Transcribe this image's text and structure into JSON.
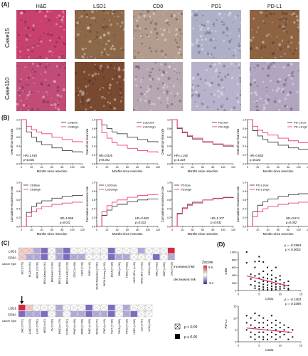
{
  "panels": {
    "A": "(A)",
    "B": "(B)",
    "C": "(C)",
    "D": "(D)"
  },
  "histology": {
    "columns": [
      "H&E",
      "LSD1",
      "CD8",
      "PD1",
      "PD-L1"
    ],
    "rows": [
      "Case15",
      "Case110"
    ],
    "tile_colors": [
      [
        "#c8416e",
        "#8c6848",
        "#b39c8e",
        "#aeb0c8",
        "#8d6342"
      ],
      [
        "#c14c78",
        "#7a4a30",
        "#b7a7b3",
        "#b9b2cc",
        "#b1a5bf"
      ]
    ]
  },
  "km": {
    "os_ylabel": "Overall survival rate",
    "rec_ylabel": "Cumulative recurrence rate",
    "xlabel": "Months since resection",
    "x_ticks": [
      "0",
      "20",
      "40",
      "60",
      "80",
      "100",
      "120"
    ],
    "os_y_ticks": [
      "0.0",
      "0.2",
      "0.4",
      "0.6",
      "0.8",
      "1.0"
    ],
    "rec_y_ticks": [
      "0.0",
      "0.2",
      "0.4",
      "0.6",
      "0.8",
      "1.0"
    ],
    "low_color": "#444444",
    "high_color": "#ee3f7e"
  },
  "chart_data": [
    {
      "type": "line",
      "panel": "B-os-1",
      "legend": [
        "CD8low",
        "CD8high"
      ],
      "hr": "HR=1.919",
      "p": "p<0.001",
      "x": [
        0,
        10,
        20,
        30,
        40,
        60,
        80,
        100,
        120
      ],
      "series": [
        {
          "name": "CD8low",
          "values": [
            1,
            0.72,
            0.6,
            0.5,
            0.43,
            0.36,
            0.3,
            0.27,
            0.25
          ]
        },
        {
          "name": "CD8high",
          "values": [
            1,
            0.85,
            0.77,
            0.72,
            0.68,
            0.6,
            0.55,
            0.5,
            0.48
          ]
        }
      ]
    },
    {
      "type": "line",
      "panel": "B-os-2",
      "legend": [
        "LSD1low",
        "LSD1high"
      ],
      "hr": "HR=0.525",
      "p": "p<0.001",
      "x": [
        0,
        10,
        20,
        30,
        40,
        60,
        80,
        100,
        120
      ],
      "series": [
        {
          "name": "LSD1low",
          "values": [
            1,
            0.88,
            0.8,
            0.72,
            0.68,
            0.6,
            0.55,
            0.5,
            0.48
          ]
        },
        {
          "name": "LSD1high",
          "values": [
            1,
            0.7,
            0.58,
            0.48,
            0.42,
            0.35,
            0.3,
            0.27,
            0.25
          ]
        }
      ]
    },
    {
      "type": "line",
      "panel": "B-os-3",
      "legend": [
        "PD1low",
        "PD1high"
      ],
      "hr": "HR=1.192",
      "p": "p=0.319",
      "x": [
        0,
        10,
        20,
        30,
        40,
        60,
        80,
        100,
        120
      ],
      "series": [
        {
          "name": "PD1low",
          "values": [
            1,
            0.8,
            0.7,
            0.62,
            0.56,
            0.49,
            0.44,
            0.4,
            0.38
          ]
        },
        {
          "name": "PD1high",
          "values": [
            1,
            0.82,
            0.72,
            0.64,
            0.58,
            0.5,
            0.45,
            0.42,
            0.4
          ]
        }
      ]
    },
    {
      "type": "line",
      "panel": "B-os-4",
      "legend": [
        "PD-L1low",
        "PD-L1high"
      ],
      "hr": "HR=0.645",
      "p": "p=0.023",
      "x": [
        0,
        10,
        20,
        30,
        40,
        60,
        80,
        100,
        120
      ],
      "series": [
        {
          "name": "PD-L1low",
          "values": [
            1,
            0.75,
            0.63,
            0.55,
            0.49,
            0.42,
            0.36,
            0.33,
            0.3
          ]
        },
        {
          "name": "PD-L1high",
          "values": [
            1,
            0.85,
            0.76,
            0.7,
            0.65,
            0.58,
            0.52,
            0.48,
            0.46
          ]
        }
      ]
    },
    {
      "type": "line",
      "panel": "B-rec-1",
      "legend": [
        "CD8low",
        "CD8high"
      ],
      "hr": "HR=1.559",
      "p": "p=0.011",
      "x": [
        0,
        10,
        20,
        30,
        40,
        60,
        80,
        100,
        120
      ],
      "series": [
        {
          "name": "CD8low",
          "values": [
            0,
            0.32,
            0.45,
            0.53,
            0.58,
            0.64,
            0.68,
            0.7,
            0.72
          ]
        },
        {
          "name": "CD8high",
          "values": [
            0,
            0.22,
            0.33,
            0.4,
            0.45,
            0.5,
            0.53,
            0.55,
            0.56
          ]
        }
      ]
    },
    {
      "type": "line",
      "panel": "B-rec-2",
      "legend": [
        "LSD1low",
        "LSD1high"
      ],
      "hr": "HR=0.683",
      "p": "p=0.022",
      "x": [
        0,
        10,
        20,
        30,
        40,
        60,
        80,
        100,
        120
      ],
      "series": [
        {
          "name": "LSD1low",
          "values": [
            0,
            0.25,
            0.37,
            0.45,
            0.5,
            0.56,
            0.6,
            0.62,
            0.63
          ]
        },
        {
          "name": "LSD1high",
          "values": [
            0,
            0.33,
            0.47,
            0.55,
            0.6,
            0.66,
            0.7,
            0.72,
            0.73
          ]
        }
      ]
    },
    {
      "type": "line",
      "panel": "B-rec-3",
      "legend": [
        "PD1low",
        "PD1high"
      ],
      "hr": "HR=1.107",
      "p": "p=0.542",
      "x": [
        0,
        10,
        20,
        30,
        40,
        60,
        80,
        100,
        120
      ],
      "series": [
        {
          "name": "PD1low",
          "values": [
            0,
            0.3,
            0.42,
            0.5,
            0.55,
            0.6,
            0.63,
            0.65,
            0.66
          ]
        },
        {
          "name": "PD1high",
          "values": [
            0,
            0.28,
            0.4,
            0.48,
            0.53,
            0.6,
            0.64,
            0.66,
            0.67
          ]
        }
      ]
    },
    {
      "type": "line",
      "panel": "B-rec-4",
      "legend": [
        "PD-L1low",
        "PD-L1high"
      ],
      "hr": "HR=0.574",
      "p": "p=0.002",
      "x": [
        0,
        10,
        20,
        30,
        40,
        60,
        80,
        100,
        120
      ],
      "series": [
        {
          "name": "PD-L1low",
          "values": [
            0,
            0.33,
            0.48,
            0.56,
            0.62,
            0.68,
            0.72,
            0.74,
            0.75
          ]
        },
        {
          "name": "PD-L1high",
          "values": [
            0,
            0.22,
            0.33,
            0.4,
            0.45,
            0.5,
            0.53,
            0.55,
            0.56
          ]
        }
      ]
    },
    {
      "type": "heatmap",
      "panel": "C-top",
      "rows": [
        "LSD1",
        "CD8A"
      ],
      "columns": [
        "ACC (n=79)",
        "BLCA (n=404)",
        "BRCA (n=1100)",
        "BRCA-Basal (n=191)",
        "BRCA-Her2 (n=82)",
        "BRCA-LumA (n=568)",
        "BRCA-LumB (n=219)",
        "CESC (n=306)",
        "CHOL (n=36)",
        "DLBC (n=48)",
        "SKCM-Metastasis (n=367)",
        "SKCM-Primary (n=103)",
        "ESCA (n=185)",
        "GBM (n=153)",
        "HNSC (n=522)",
        "HNSC-HPV+ (n=98)",
        "HNSC-HPV- (n=422)",
        "KICH (n=66)",
        "KIRC (n=533)",
        "KIRP (n=290)",
        "LGG (n=516)"
      ],
      "values": [
        [
          1,
          1,
          -1,
          -1,
          0,
          -1,
          -1,
          0,
          0,
          0,
          0,
          0,
          -1,
          0,
          0,
          0,
          -1,
          0,
          0,
          0,
          2
        ],
        [
          1,
          -1,
          -1,
          -1,
          0,
          -1,
          -1,
          -1,
          -1,
          0,
          0,
          0,
          -1,
          -1,
          -1,
          0,
          0,
          0,
          -1,
          0,
          -1
        ]
      ]
    },
    {
      "type": "heatmap",
      "panel": "C-bottom",
      "rows": [
        "LSD1",
        "CD8A"
      ],
      "columns": [
        "LIHC (n=371)",
        "LUAD (n=515)",
        "LUSC (n=501)",
        "MESO (n=87)",
        "OV (n=303)",
        "PAAD (n=179)",
        "PCPG (n=181)",
        "PRAD (n=498)",
        "READ (n=166)",
        "SARC (n=260)",
        "SKCM (n=471)",
        "STAD (n=415)",
        "TGCT (n=150)",
        "THCA (n=509)",
        "THYM (n=120)",
        "UCEC (n=545)",
        "UCS (n=57)",
        "UVM (n=80)"
      ],
      "values": [
        [
          2,
          1,
          0,
          0,
          0,
          -1,
          0,
          0,
          0,
          -1,
          0,
          0,
          -1,
          0,
          -1,
          0,
          0,
          0
        ],
        [
          -1,
          -1,
          -1,
          -1,
          0,
          -1,
          0,
          -1,
          -1,
          -1,
          -1,
          -1,
          -1,
          0,
          -1,
          -1,
          0,
          0
        ]
      ],
      "arrow_column": "LIHC (n=371)"
    },
    {
      "type": "scatter",
      "panel": "D-top",
      "xlabel": "LSD1",
      "ylabel": "CD8",
      "rho": "ρ = -0.2984",
      "p": "p < 0.0001",
      "xlim": [
        0,
        15
      ],
      "ylim": [
        0,
        1000
      ],
      "x_ticks": [
        "0",
        "5",
        "10",
        "15"
      ],
      "y_ticks": [
        "0",
        "200",
        "400",
        "600",
        "800",
        "1000"
      ],
      "points": [
        [
          2,
          1000
        ],
        [
          2,
          720
        ],
        [
          3,
          420
        ],
        [
          3,
          300
        ],
        [
          3,
          150
        ],
        [
          4,
          750
        ],
        [
          4,
          600
        ],
        [
          4,
          380
        ],
        [
          4,
          240
        ],
        [
          4,
          120
        ],
        [
          4,
          60
        ],
        [
          5,
          880
        ],
        [
          5,
          760
        ],
        [
          5,
          430
        ],
        [
          5,
          320
        ],
        [
          5,
          200
        ],
        [
          5,
          110
        ],
        [
          5,
          40
        ],
        [
          6,
          740
        ],
        [
          6,
          500
        ],
        [
          6,
          340
        ],
        [
          6,
          240
        ],
        [
          6,
          160
        ],
        [
          6,
          90
        ],
        [
          6,
          30
        ],
        [
          7,
          600
        ],
        [
          7,
          420
        ],
        [
          7,
          310
        ],
        [
          7,
          220
        ],
        [
          7,
          140
        ],
        [
          7,
          70
        ],
        [
          7,
          20
        ],
        [
          8,
          520
        ],
        [
          8,
          400
        ],
        [
          8,
          290
        ],
        [
          8,
          180
        ],
        [
          8,
          110
        ],
        [
          8,
          50
        ],
        [
          8,
          10
        ],
        [
          9,
          600
        ],
        [
          9,
          330
        ],
        [
          9,
          240
        ],
        [
          9,
          160
        ],
        [
          9,
          90
        ],
        [
          9,
          30
        ],
        [
          10,
          380
        ],
        [
          10,
          280
        ],
        [
          10,
          170
        ],
        [
          10,
          100
        ],
        [
          10,
          40
        ],
        [
          11,
          200
        ],
        [
          11,
          120
        ],
        [
          11,
          60
        ],
        [
          12,
          240
        ],
        [
          12,
          130
        ],
        [
          12,
          50
        ],
        [
          12,
          20
        ]
      ],
      "fit": [
        [
          2,
          380
        ],
        [
          12,
          120
        ]
      ]
    },
    {
      "type": "scatter",
      "panel": "D-bottom",
      "xlabel": "LSD1",
      "ylabel": "PD-L1",
      "rho": "ρ = -0.1403",
      "p": "p = 0.0385",
      "xlim": [
        0,
        15
      ],
      "ylim": [
        0,
        15
      ],
      "x_ticks": [
        "0",
        "5",
        "10",
        "15"
      ],
      "y_ticks": [
        "0",
        "5",
        "10",
        "15"
      ],
      "points": [
        [
          2,
          11
        ],
        [
          2,
          8
        ],
        [
          2,
          5
        ],
        [
          3,
          10
        ],
        [
          3,
          7
        ],
        [
          3,
          4
        ],
        [
          3,
          2
        ],
        [
          4,
          12
        ],
        [
          4,
          9
        ],
        [
          4,
          6
        ],
        [
          4,
          3
        ],
        [
          4,
          1
        ],
        [
          5,
          11
        ],
        [
          5,
          8
        ],
        [
          5,
          6
        ],
        [
          5,
          4
        ],
        [
          5,
          2
        ],
        [
          6,
          10
        ],
        [
          6,
          8
        ],
        [
          6,
          6
        ],
        [
          6,
          4
        ],
        [
          6,
          2
        ],
        [
          6,
          1
        ],
        [
          7,
          9
        ],
        [
          7,
          7
        ],
        [
          7,
          5
        ],
        [
          7,
          3
        ],
        [
          7,
          1
        ],
        [
          8,
          11
        ],
        [
          8,
          8
        ],
        [
          8,
          6
        ],
        [
          8,
          4
        ],
        [
          8,
          2
        ],
        [
          9,
          9
        ],
        [
          9,
          7
        ],
        [
          9,
          5
        ],
        [
          9,
          3
        ],
        [
          9,
          1
        ],
        [
          10,
          8
        ],
        [
          10,
          6
        ],
        [
          10,
          4
        ],
        [
          10,
          2
        ],
        [
          11,
          7
        ],
        [
          11,
          5
        ],
        [
          11,
          3
        ],
        [
          12,
          6
        ],
        [
          12,
          4
        ],
        [
          12,
          1
        ],
        [
          13,
          5
        ],
        [
          13,
          2
        ]
      ],
      "fit": [
        [
          2,
          5.8
        ],
        [
          13,
          3.9
        ]
      ]
    }
  ],
  "heat_legend": {
    "title": "Zscore",
    "max": "5.9",
    "min": "-5.1",
    "increased": "increased risk",
    "decreased": "decreased risk",
    "ns": "p > 0.05",
    "sig": "p ≤ 0.05",
    "pos_color": "#d7263d",
    "neg_color": "#3b2a8f",
    "row_label_header": "Cancer Type"
  }
}
